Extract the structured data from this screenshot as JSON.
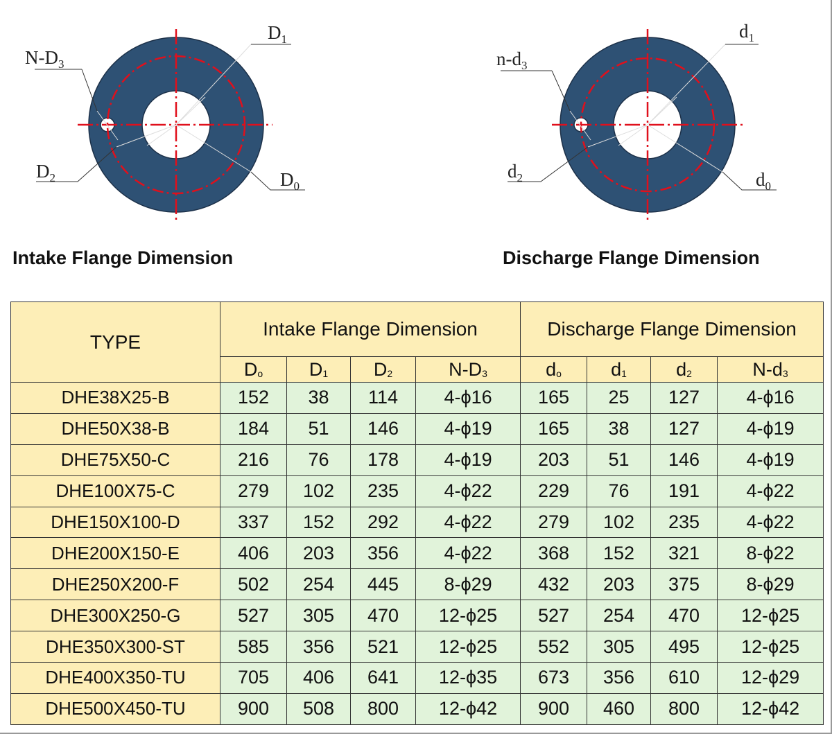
{
  "diagrams": {
    "intake": {
      "caption": "Intake Flange Dimension",
      "labels": {
        "bolt": "N-D",
        "bolt_sub": "3",
        "d1": "D",
        "d1_sub": "1",
        "d2": "D",
        "d2_sub": "2",
        "d0": "D",
        "d0_sub": "0"
      }
    },
    "discharge": {
      "caption": "Discharge Flange Dimension",
      "labels": {
        "bolt": "n-d",
        "bolt_sub": "3",
        "d1": "d",
        "d1_sub": "1",
        "d2": "d",
        "d2_sub": "2",
        "d0": "d",
        "d0_sub": "0"
      }
    }
  },
  "table": {
    "type_header": "TYPE",
    "intake_header": "Intake Flange Dimension",
    "discharge_header": "Discharge Flange Dimension",
    "columns": [
      {
        "base": "D",
        "sub": "o"
      },
      {
        "base": "D",
        "sub": "1"
      },
      {
        "base": "D",
        "sub": "2"
      },
      {
        "base": "N-D",
        "sub": "3"
      },
      {
        "base": "d",
        "sub": "o"
      },
      {
        "base": "d",
        "sub": "1"
      },
      {
        "base": "d",
        "sub": "2"
      },
      {
        "base": "N-d",
        "sub": "3"
      }
    ],
    "rows": [
      {
        "type": "DHE38X25-B",
        "values": [
          "152",
          "38",
          "114",
          "4-ϕ16",
          "165",
          "25",
          "127",
          "4-ϕ16"
        ]
      },
      {
        "type": "DHE50X38-B",
        "values": [
          "184",
          "51",
          "146",
          "4-ϕ19",
          "165",
          "38",
          "127",
          "4-ϕ19"
        ]
      },
      {
        "type": "DHE75X50-C",
        "values": [
          "216",
          "76",
          "178",
          "4-ϕ19",
          "203",
          "51",
          "146",
          "4-ϕ19"
        ]
      },
      {
        "type": "DHE100X75-C",
        "values": [
          "279",
          "102",
          "235",
          "4-ϕ22",
          "229",
          "76",
          "191",
          "4-ϕ22"
        ]
      },
      {
        "type": "DHE150X100-D",
        "values": [
          "337",
          "152",
          "292",
          "4-ϕ22",
          "279",
          "102",
          "235",
          "4-ϕ22"
        ]
      },
      {
        "type": "DHE200X150-E",
        "values": [
          "406",
          "203",
          "356",
          "4-ϕ22",
          "368",
          "152",
          "321",
          "8-ϕ22"
        ]
      },
      {
        "type": "DHE250X200-F",
        "values": [
          "502",
          "254",
          "445",
          "8-ϕ29",
          "432",
          "203",
          "375",
          "8-ϕ29"
        ]
      },
      {
        "type": "DHE300X250-G",
        "values": [
          "527",
          "305",
          "470",
          "12-ϕ25",
          "527",
          "254",
          "470",
          "12-ϕ25"
        ]
      },
      {
        "type": "DHE350X300-ST",
        "values": [
          "585",
          "356",
          "521",
          "12-ϕ25",
          "552",
          "305",
          "495",
          "12-ϕ25"
        ]
      },
      {
        "type": "DHE400X350-TU",
        "values": [
          "705",
          "406",
          "641",
          "12-ϕ35",
          "673",
          "356",
          "610",
          "12-ϕ29"
        ]
      },
      {
        "type": "DHE500X450-TU",
        "values": [
          "900",
          "508",
          "800",
          "12-ϕ42",
          "900",
          "460",
          "800",
          "12-ϕ42"
        ]
      }
    ]
  },
  "colors": {
    "flange_fill": "#2e5174",
    "center_line": "#e0101c",
    "header_bg": "#fdeeb7",
    "cell_bg": "#e1f3da"
  }
}
